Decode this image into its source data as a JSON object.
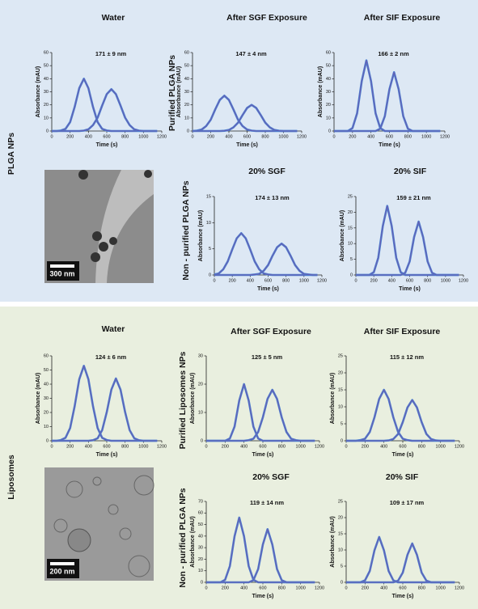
{
  "figure": {
    "top": {
      "panel_label": "PLGA NPs",
      "col_headers": [
        "Water",
        "After SGF Exposure",
        "After SIF Exposure"
      ],
      "row_labels": [
        "Purified PLGA NPs",
        "Non - purified PLGA NPs"
      ],
      "sub_headers": [
        "20% SGF",
        "20% SIF"
      ],
      "scale_bar": "300 nm"
    },
    "bottom": {
      "panel_label": "Liposomes",
      "col_headers": [
        "Water",
        "After SGF Exposure",
        "After SIF Exposure"
      ],
      "row_labels": [
        "Purified Liposomes NPs",
        "Non - purified PLGA NPs"
      ],
      "sub_headers": [
        "20% SGF",
        "20% SIF"
      ],
      "scale_bar": "200 nm"
    }
  },
  "chart_data": [
    {
      "type": "line",
      "title": "171 ± 9 nm",
      "x_label": "Time (s)",
      "y_label": "Absorbance (mAU)",
      "xlim": [
        0,
        1200
      ],
      "xticks": [
        0,
        200,
        400,
        600,
        800,
        1000,
        1200
      ],
      "ylim": [
        0,
        60
      ],
      "yticks": [
        0,
        10,
        20,
        30,
        40,
        50,
        60
      ],
      "x": [
        0,
        50,
        100,
        150,
        200,
        250,
        300,
        350,
        400,
        450,
        500,
        550,
        600,
        650,
        700,
        750,
        800,
        850,
        900,
        950,
        1000,
        1050,
        1100,
        1150
      ],
      "series": [
        {
          "color": "#6a5cb0",
          "values": [
            0,
            0,
            0.4,
            1.6,
            6.8,
            18.4,
            32.8,
            40,
            32.8,
            18.4,
            6.8,
            1.6,
            0.4,
            0,
            0,
            0,
            0,
            0,
            0,
            0,
            0,
            0,
            0,
            0
          ]
        },
        {
          "color": "#6a5cb0",
          "values": [
            0,
            0,
            0,
            0,
            0,
            0,
            0,
            0.3,
            1.3,
            4.5,
            10.2,
            19.5,
            28.2,
            32,
            28.2,
            19.5,
            10.2,
            4.5,
            1.3,
            0.3,
            0,
            0,
            0,
            0
          ]
        }
      ]
    },
    {
      "type": "line",
      "title": "147 ± 4 nm",
      "x_label": "Time (s)",
      "y_label": "Absorbance (mAU)",
      "xlim": [
        0,
        1200
      ],
      "xticks": [
        0,
        200,
        400,
        600,
        800,
        1000,
        1200
      ],
      "ylim": [
        0,
        60
      ],
      "yticks": [
        0,
        10,
        20,
        30,
        40,
        50,
        60
      ],
      "x": [
        0,
        50,
        100,
        150,
        200,
        250,
        300,
        350,
        400,
        450,
        500,
        550,
        600,
        650,
        700,
        750,
        800,
        850,
        900,
        950,
        1000,
        1050,
        1100,
        1150
      ],
      "series": [
        {
          "color": "#6a5cb0",
          "values": [
            0,
            0.3,
            1.1,
            3.8,
            8.6,
            16.5,
            23.8,
            27,
            23.8,
            16.5,
            8.6,
            3.8,
            1.1,
            0.3,
            0,
            0,
            0,
            0,
            0,
            0,
            0,
            0,
            0,
            0
          ]
        },
        {
          "color": "#6a5cb0",
          "values": [
            0,
            0,
            0,
            0,
            0,
            0,
            0,
            0.2,
            0.8,
            2.8,
            6.4,
            12.2,
            17.6,
            20,
            17.6,
            12.2,
            6.4,
            2.8,
            0.8,
            0.2,
            0,
            0,
            0,
            0
          ]
        }
      ]
    },
    {
      "type": "line",
      "title": "166 ± 2 nm",
      "x_label": "Time (s)",
      "y_label": "Absorbance (mAU)",
      "xlim": [
        0,
        1200
      ],
      "xticks": [
        0,
        200,
        400,
        600,
        800,
        1000,
        1200
      ],
      "ylim": [
        0,
        60
      ],
      "yticks": [
        0,
        10,
        20,
        30,
        40,
        50,
        60
      ],
      "x": [
        0,
        50,
        100,
        150,
        200,
        250,
        300,
        350,
        400,
        450,
        500,
        550,
        600,
        650,
        700,
        750,
        800,
        850,
        900,
        950,
        1000,
        1050,
        1100,
        1150
      ],
      "series": [
        {
          "color": "#6a5cb0",
          "values": [
            0,
            0,
            0,
            0,
            2.2,
            13.5,
            38.3,
            54,
            38.3,
            13.5,
            2.2,
            0,
            0,
            0,
            0,
            0,
            0,
            0,
            0,
            0,
            0,
            0,
            0,
            0
          ]
        },
        {
          "color": "#6a5cb0",
          "values": [
            0,
            0,
            0,
            0,
            0,
            0,
            0,
            0,
            0,
            0,
            1.8,
            11.3,
            32,
            45,
            32,
            11.3,
            1.8,
            0,
            0,
            0,
            0,
            0,
            0,
            0
          ]
        }
      ]
    },
    {
      "type": "line",
      "title": "174 ± 13 nm",
      "x_label": "Time (s)",
      "y_label": "Absorbance (mAU)",
      "xlim": [
        0,
        1200
      ],
      "xticks": [
        0,
        200,
        400,
        600,
        800,
        1000,
        1200
      ],
      "ylim": [
        0,
        15
      ],
      "yticks": [
        0,
        5,
        10,
        15
      ],
      "x": [
        0,
        50,
        100,
        150,
        200,
        250,
        300,
        350,
        400,
        450,
        500,
        550,
        600,
        650,
        700,
        750,
        800,
        850,
        900,
        950,
        1000,
        1050,
        1100,
        1150
      ],
      "series": [
        {
          "color": "#6a5cb0",
          "values": [
            0.1,
            0.3,
            1.1,
            2.6,
            4.9,
            7,
            8,
            7,
            4.9,
            2.6,
            1.1,
            0.3,
            0.1,
            0,
            0,
            0,
            0,
            0,
            0,
            0,
            0,
            0,
            0,
            0
          ]
        },
        {
          "color": "#6a5cb0",
          "values": [
            0,
            0,
            0,
            0,
            0,
            0,
            0,
            0,
            0,
            0.1,
            0.2,
            0.8,
            1.9,
            3.7,
            5.3,
            6,
            5.3,
            3.7,
            1.9,
            0.8,
            0.2,
            0.1,
            0,
            0
          ]
        }
      ]
    },
    {
      "type": "line",
      "title": "159 ± 21 nm",
      "x_label": "Time (s)",
      "y_label": "Absorbance (mAU)",
      "xlim": [
        0,
        1200
      ],
      "xticks": [
        0,
        200,
        400,
        600,
        800,
        1000,
        1200
      ],
      "ylim": [
        0,
        25
      ],
      "yticks": [
        0,
        5,
        10,
        15,
        20,
        25
      ],
      "x": [
        0,
        50,
        100,
        150,
        200,
        250,
        300,
        350,
        400,
        450,
        500,
        550,
        600,
        650,
        700,
        750,
        800,
        850,
        900,
        950,
        1000,
        1050,
        1100,
        1150
      ],
      "series": [
        {
          "color": "#6a5cb0",
          "values": [
            0,
            0,
            0,
            0,
            0.9,
            5.5,
            15.6,
            22,
            15.6,
            5.5,
            0.9,
            0,
            0,
            0,
            0,
            0,
            0,
            0,
            0,
            0,
            0,
            0,
            0,
            0
          ]
        },
        {
          "color": "#6a5cb0",
          "values": [
            0,
            0,
            0,
            0,
            0,
            0,
            0,
            0,
            0,
            0,
            0,
            0.7,
            4.3,
            12.1,
            17,
            12.1,
            4.3,
            0.7,
            0,
            0,
            0,
            0,
            0,
            0
          ]
        }
      ]
    },
    {
      "type": "line",
      "title": "124 ± 6 nm",
      "x_label": "Time (s)",
      "y_label": "Absorbance (mAU)",
      "xlim": [
        0,
        1200
      ],
      "xticks": [
        0,
        200,
        400,
        600,
        800,
        1000,
        1200
      ],
      "ylim": [
        0,
        60
      ],
      "yticks": [
        0,
        10,
        20,
        30,
        40,
        50,
        60
      ],
      "x": [
        0,
        50,
        100,
        150,
        200,
        250,
        300,
        350,
        400,
        450,
        500,
        550,
        600,
        650,
        700,
        750,
        800,
        850,
        900,
        950,
        1000,
        1050,
        1100,
        1150
      ],
      "series": [
        {
          "color": "#6a5cb0",
          "values": [
            0,
            0,
            0.5,
            2.1,
            9,
            24.4,
            43.5,
            53,
            43.5,
            24.4,
            9,
            2.1,
            0.5,
            0,
            0,
            0,
            0,
            0,
            0,
            0,
            0,
            0,
            0,
            0
          ]
        },
        {
          "color": "#6a5cb0",
          "values": [
            0,
            0,
            0,
            0,
            0,
            0,
            0,
            0,
            0,
            0.4,
            1.8,
            7.5,
            20.2,
            36.1,
            44,
            36.1,
            20.2,
            7.5,
            1.8,
            0.4,
            0,
            0,
            0,
            0
          ]
        }
      ]
    },
    {
      "type": "line",
      "title": "125 ± 5 nm",
      "x_label": "Time (s)",
      "y_label": "Absorbance (mAU)",
      "xlim": [
        0,
        1200
      ],
      "xticks": [
        0,
        200,
        400,
        600,
        800,
        1000,
        1200
      ],
      "ylim": [
        0,
        30
      ],
      "yticks": [
        0,
        10,
        20,
        30
      ],
      "x": [
        0,
        50,
        100,
        150,
        200,
        250,
        300,
        350,
        400,
        450,
        500,
        550,
        600,
        650,
        700,
        750,
        800,
        850,
        900,
        950,
        1000,
        1050,
        1100,
        1150
      ],
      "series": [
        {
          "color": "#6a5cb0",
          "values": [
            0,
            0,
            0,
            0,
            0,
            0.8,
            5,
            14.2,
            20,
            14.2,
            5,
            0.8,
            0,
            0,
            0,
            0,
            0,
            0,
            0,
            0,
            0,
            0,
            0,
            0
          ]
        },
        {
          "color": "#6a5cb0",
          "values": [
            0,
            0,
            0,
            0,
            0,
            0,
            0,
            0,
            0,
            0.2,
            0.7,
            3.1,
            8.3,
            14.8,
            18,
            14.8,
            8.3,
            3.1,
            0.7,
            0.2,
            0,
            0,
            0,
            0
          ]
        }
      ]
    },
    {
      "type": "line",
      "title": "115 ± 12 nm",
      "x_label": "Time (s)",
      "y_label": "Absorbance (mAU)",
      "xlim": [
        0,
        1200
      ],
      "xticks": [
        0,
        200,
        400,
        600,
        800,
        1000,
        1200
      ],
      "ylim": [
        0,
        25
      ],
      "yticks": [
        0,
        5,
        10,
        15,
        20,
        25
      ],
      "x": [
        0,
        50,
        100,
        150,
        200,
        250,
        300,
        350,
        400,
        450,
        500,
        550,
        600,
        650,
        700,
        750,
        800,
        850,
        900,
        950,
        1000,
        1050,
        1100,
        1150
      ],
      "series": [
        {
          "color": "#6a5cb0",
          "values": [
            0,
            0,
            0,
            0.2,
            0.6,
            2.6,
            6.9,
            12.3,
            15,
            12.3,
            6.9,
            2.6,
            0.6,
            0.2,
            0,
            0,
            0,
            0,
            0,
            0,
            0,
            0,
            0,
            0
          ]
        },
        {
          "color": "#6a5cb0",
          "values": [
            0,
            0,
            0,
            0,
            0,
            0,
            0,
            0,
            0,
            0.1,
            0.5,
            2,
            5.5,
            9.8,
            12,
            9.8,
            5.5,
            2,
            0.5,
            0.1,
            0,
            0,
            0,
            0
          ]
        }
      ]
    },
    {
      "type": "line",
      "title": "119 ± 14 nm",
      "x_label": "Time (s)",
      "y_label": "Absorbance (mAU)",
      "xlim": [
        0,
        1200
      ],
      "xticks": [
        0,
        200,
        400,
        600,
        800,
        1000,
        1200
      ],
      "ylim": [
        0,
        70
      ],
      "yticks": [
        0,
        10,
        20,
        30,
        40,
        50,
        60,
        70
      ],
      "x": [
        0,
        50,
        100,
        150,
        200,
        250,
        300,
        350,
        400,
        450,
        500,
        550,
        600,
        650,
        700,
        750,
        800,
        850,
        900,
        950,
        1000,
        1050,
        1100,
        1150
      ],
      "series": [
        {
          "color": "#6a5cb0",
          "values": [
            0,
            0,
            0,
            0,
            2.2,
            14,
            39.8,
            56,
            39.8,
            14,
            2.2,
            0,
            0,
            0,
            0,
            0,
            0,
            0,
            0,
            0,
            0,
            0,
            0,
            0
          ]
        },
        {
          "color": "#6a5cb0",
          "values": [
            0,
            0,
            0,
            0,
            0,
            0,
            0,
            0,
            0,
            0,
            1.8,
            11.5,
            32.7,
            46,
            32.7,
            11.5,
            1.8,
            0,
            0,
            0,
            0,
            0,
            0,
            0
          ]
        }
      ]
    },
    {
      "type": "line",
      "title": "109 ± 17 nm",
      "x_label": "Time (s)",
      "y_label": "Absorbance (mAU)",
      "xlim": [
        0,
        1200
      ],
      "xticks": [
        0,
        200,
        400,
        600,
        800,
        1000,
        1200
      ],
      "ylim": [
        0,
        25
      ],
      "yticks": [
        0,
        5,
        10,
        15,
        20,
        25
      ],
      "x": [
        0,
        50,
        100,
        150,
        200,
        250,
        300,
        350,
        400,
        450,
        500,
        550,
        600,
        650,
        700,
        750,
        800,
        850,
        900,
        950,
        1000,
        1050,
        1100,
        1150
      ],
      "series": [
        {
          "color": "#6a5cb0",
          "values": [
            0,
            0,
            0,
            0,
            0.6,
            3.5,
            9.9,
            14,
            9.9,
            3.5,
            0.6,
            0,
            0,
            0,
            0,
            0,
            0,
            0,
            0,
            0,
            0,
            0,
            0,
            0
          ]
        },
        {
          "color": "#6a5cb0",
          "values": [
            0,
            0,
            0,
            0,
            0,
            0,
            0,
            0,
            0,
            0,
            0,
            0.5,
            3,
            8.5,
            12,
            8.5,
            3,
            0.5,
            0,
            0,
            0,
            0,
            0,
            0
          ]
        }
      ]
    }
  ]
}
